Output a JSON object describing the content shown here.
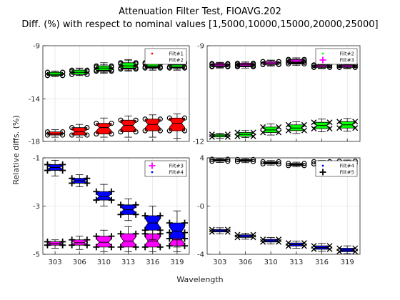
{
  "chart_data": {
    "type": "box",
    "title_line1": "Attenuation Filter Test, FIOAVG.202",
    "title_line2": "Diff. (%) with respect to nominal values [1,5000,10000,15000,20000,25000]",
    "xlabel": "Wavelength",
    "ylabel": "Relative diffs. (%)",
    "categories": [
      "303",
      "306",
      "310",
      "313",
      "316",
      "319"
    ],
    "colors": {
      "black": "#000000",
      "red": "#ff0000",
      "green": "#00ff00",
      "magenta": "#ff00ff",
      "blue": "#0000ff"
    },
    "panels": [
      {
        "id": "top-left",
        "ylim": [
          -18,
          -9
        ],
        "yticks": [
          "-9",
          "-14",
          "-18"
        ],
        "ytick_values": [
          -9,
          -14,
          -18
        ],
        "legend": [
          {
            "label": "Filt#1",
            "marker": "dot",
            "color": "#ff0000"
          },
          {
            "label": "Filt#2",
            "marker": "cross",
            "color": "#000000"
          }
        ],
        "series": [
          {
            "color": "#ff0000",
            "outlier": "o",
            "boxes": [
              [
                -17.6,
                -17.4,
                -17.3,
                -17.1,
                -16.9
              ],
              [
                -17.6,
                -17.4,
                -17.1,
                -16.7,
                -16.4
              ],
              [
                -17.6,
                -17.3,
                -16.7,
                -16.3,
                -15.8
              ],
              [
                -17.6,
                -17.1,
                -16.5,
                -16.0,
                -15.6
              ],
              [
                -17.6,
                -17.0,
                -16.4,
                -15.9,
                -15.5
              ],
              [
                -17.7,
                -17.0,
                -16.3,
                -15.8,
                -15.4
              ]
            ]
          },
          {
            "color": "#000000",
            "outlier": "o",
            "boxes": [
              [
                -11.9,
                -11.8,
                -11.7,
                -11.5,
                -11.4
              ],
              [
                -11.8,
                -11.7,
                -11.6,
                -11.4,
                -11.2
              ],
              [
                -11.6,
                -11.4,
                -11.2,
                -11.0,
                -10.8
              ],
              [
                -11.4,
                -11.2,
                -11.0,
                -10.7,
                -10.4
              ],
              [
                -11.3,
                -11.1,
                -10.9,
                -10.6,
                -10.4
              ],
              [
                -11.3,
                -11.1,
                -10.9,
                -10.6,
                -10.3
              ]
            ]
          },
          {
            "color": "#00ff00",
            "outlier": "o",
            "boxes": [
              [
                -11.9,
                -11.8,
                -11.7,
                -11.5,
                -11.4
              ],
              [
                -11.8,
                -11.7,
                -11.5,
                -11.3,
                -11.1
              ],
              [
                -11.5,
                -11.3,
                -11.1,
                -10.9,
                -10.6
              ],
              [
                -11.3,
                -11.1,
                -10.9,
                -10.6,
                -10.3
              ],
              [
                -11.2,
                -11.0,
                -10.9,
                -10.7,
                -10.5
              ],
              [
                -11.2,
                -11.0,
                -10.8,
                -10.6,
                -10.4
              ]
            ]
          }
        ]
      },
      {
        "id": "top-right",
        "ylim": [
          -12,
          -9
        ],
        "yticks": [
          "-9",
          "-12"
        ],
        "ytick_values": [
          -9,
          -12
        ],
        "legend": [
          {
            "label": "Filt#2",
            "marker": "dot",
            "color": "#00ff00"
          },
          {
            "label": "Filt#3",
            "marker": "plus",
            "color": "#ff00ff"
          }
        ],
        "series": [
          {
            "color": "#000000",
            "outlier": "o",
            "boxes": [
              [
                -9.7,
                -9.66,
                -9.62,
                -9.58,
                -9.54
              ],
              [
                -9.7,
                -9.66,
                -9.62,
                -9.58,
                -9.54
              ],
              [
                -9.64,
                -9.59,
                -9.55,
                -9.5,
                -9.45
              ],
              [
                -9.62,
                -9.57,
                -9.52,
                -9.47,
                -9.42
              ],
              [
                -9.72,
                -9.68,
                -9.65,
                -9.62,
                -9.58
              ],
              [
                -9.72,
                -9.68,
                -9.65,
                -9.62,
                -9.58
              ]
            ]
          },
          {
            "color": "#ff00ff",
            "outlier": "o",
            "boxes": [
              [
                -9.68,
                -9.64,
                -9.6,
                -9.56,
                -9.52
              ],
              [
                -9.66,
                -9.63,
                -9.59,
                -9.55,
                -9.51
              ],
              [
                -9.62,
                -9.58,
                -9.54,
                -9.5,
                -9.46
              ],
              [
                -9.58,
                -9.52,
                -9.48,
                -9.43,
                -9.38
              ],
              [
                -9.7,
                -9.67,
                -9.63,
                -9.6,
                -9.57
              ],
              [
                -9.7,
                -9.67,
                -9.63,
                -9.6,
                -9.57
              ]
            ]
          },
          {
            "color": "#00ff00",
            "outlier": "x",
            "boxes": [
              [
                -11.9,
                -11.86,
                -11.82,
                -11.78,
                -11.74
              ],
              [
                -11.88,
                -11.84,
                -11.78,
                -11.72,
                -11.66
              ],
              [
                -11.8,
                -11.72,
                -11.64,
                -11.55,
                -11.45
              ],
              [
                -11.75,
                -11.66,
                -11.58,
                -11.48,
                -11.38
              ],
              [
                -11.7,
                -11.6,
                -11.5,
                -11.4,
                -11.3
              ],
              [
                -11.68,
                -11.58,
                -11.48,
                -11.38,
                -11.28
              ]
            ]
          }
        ]
      },
      {
        "id": "bottom-left",
        "ylim": [
          -5,
          -1
        ],
        "yticks": [
          "-1",
          "-3",
          "-5"
        ],
        "ytick_values": [
          -1,
          -3,
          -5
        ],
        "legend": [
          {
            "label": "Filt#3",
            "marker": "plus",
            "color": "#ff00ff"
          },
          {
            "label": "Filt#4",
            "marker": "dot",
            "color": "#0000ff"
          }
        ],
        "series": [
          {
            "color": "#ff00ff",
            "outlier": "plus",
            "boxes": [
              [
                -4.75,
                -4.62,
                -4.55,
                -4.48,
                -4.4
              ],
              [
                -4.8,
                -4.62,
                -4.52,
                -4.4,
                -4.25
              ],
              [
                -4.9,
                -4.7,
                -4.5,
                -4.25,
                -4.0
              ],
              [
                -4.9,
                -4.7,
                -4.45,
                -4.15,
                -3.85
              ],
              [
                -4.9,
                -4.7,
                -4.45,
                -4.15,
                -3.85
              ],
              [
                -4.9,
                -4.65,
                -4.4,
                -4.1,
                -3.8
              ]
            ]
          },
          {
            "color": "#0000ff",
            "outlier": "plus",
            "boxes": [
              [
                -1.75,
                -1.52,
                -1.4,
                -1.28,
                -1.1
              ],
              [
                -2.2,
                -2.05,
                -1.95,
                -1.85,
                -1.7
              ],
              [
                -3.0,
                -2.75,
                -2.6,
                -2.4,
                -2.1
              ],
              [
                -3.6,
                -3.35,
                -3.15,
                -2.95,
                -2.7
              ],
              [
                -4.4,
                -4.0,
                -3.7,
                -3.4,
                -3.0
              ],
              [
                -4.7,
                -4.35,
                -4.05,
                -3.7,
                -3.2
              ]
            ]
          }
        ]
      },
      {
        "id": "bottom-right",
        "ylim": [
          -4,
          4
        ],
        "yticks": [
          "4",
          "-0",
          "-4"
        ],
        "ytick_values": [
          4,
          0,
          -4
        ],
        "legend": [
          {
            "label": "Filt#4",
            "marker": "dot",
            "color": "#0000ff"
          },
          {
            "label": "Filt#5",
            "marker": "plus",
            "color": "#000000"
          }
        ],
        "series": [
          {
            "color": "#000000",
            "outlier": "o",
            "boxes": [
              [
                3.62,
                3.72,
                3.8,
                3.88,
                3.96
              ],
              [
                3.6,
                3.7,
                3.78,
                3.86,
                3.94
              ],
              [
                3.4,
                3.5,
                3.58,
                3.68,
                3.78
              ],
              [
                3.25,
                3.36,
                3.45,
                3.54,
                3.64
              ],
              [
                3.4,
                3.5,
                3.58,
                3.68,
                3.78
              ],
              [
                3.45,
                3.55,
                3.63,
                3.72,
                3.82
              ]
            ]
          },
          {
            "color": "#0000ff",
            "outlier": "x",
            "boxes": [
              [
                -2.3,
                -2.15,
                -2.05,
                -1.95,
                -1.8
              ],
              [
                -2.75,
                -2.6,
                -2.5,
                -2.38,
                -2.25
              ],
              [
                -3.15,
                -2.98,
                -2.88,
                -2.76,
                -2.6
              ],
              [
                -3.5,
                -3.32,
                -3.2,
                -3.06,
                -2.9
              ],
              [
                -3.75,
                -3.58,
                -3.45,
                -3.3,
                -3.1
              ],
              [
                -3.95,
                -3.78,
                -3.65,
                -3.5,
                -3.3
              ]
            ]
          }
        ]
      }
    ]
  }
}
